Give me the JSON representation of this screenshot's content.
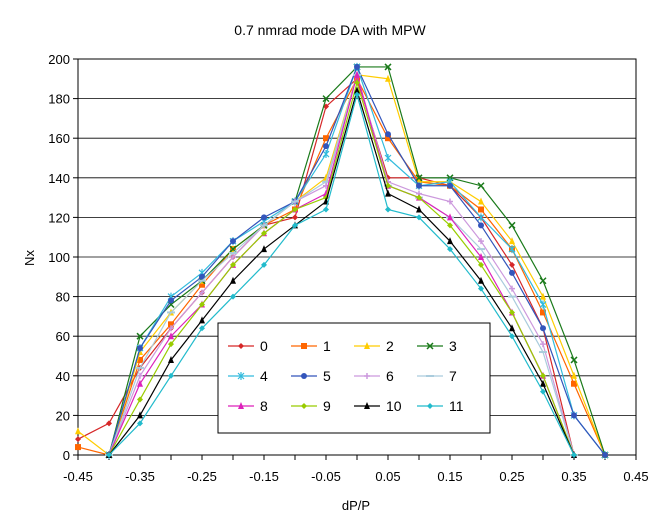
{
  "chart_data": {
    "type": "line",
    "title": "0.7 nmrad mode DA with MPW",
    "xlabel": "dP/P",
    "ylabel": "Nx",
    "xlim": [
      -0.45,
      0.45
    ],
    "ylim": [
      0,
      200
    ],
    "x_ticks": [
      "-0.45",
      "-0.35",
      "-0.25",
      "-0.15",
      "-0.05",
      "0.05",
      "0.15",
      "0.25",
      "0.35",
      "0.45"
    ],
    "y_ticks": [
      "0",
      "20",
      "40",
      "60",
      "80",
      "100",
      "120",
      "140",
      "160",
      "180",
      "200"
    ],
    "x": [
      -0.45,
      -0.4,
      -0.35,
      -0.3,
      -0.25,
      -0.2,
      -0.15,
      -0.1,
      -0.05,
      0.0,
      0.05,
      0.1,
      0.15,
      0.2,
      0.25,
      0.3,
      0.35,
      0.4,
      0.45
    ],
    "legend": {
      "placement": "lower-center",
      "columns": 4
    },
    "series": [
      {
        "name": "0",
        "color": "#d62728",
        "marker": "diamond",
        "values": [
          8,
          16,
          44,
          64,
          82,
          100,
          116,
          120,
          176,
          190,
          140,
          140,
          136,
          120,
          96,
          64,
          0,
          null,
          null
        ]
      },
      {
        "name": "1",
        "color": "#ff6600",
        "marker": "square",
        "values": [
          4,
          0,
          48,
          66,
          86,
          104,
          116,
          124,
          160,
          190,
          160,
          138,
          136,
          124,
          104,
          72,
          36,
          0,
          null
        ]
      },
      {
        "name": "2",
        "color": "#ffcc00",
        "marker": "triangle",
        "values": [
          12,
          0,
          52,
          72,
          88,
          104,
          116,
          128,
          140,
          192,
          190,
          138,
          138,
          128,
          108,
          80,
          40,
          0,
          null
        ]
      },
      {
        "name": "3",
        "color": "#1a7a1a",
        "marker": "x",
        "values": [
          null,
          0,
          60,
          76,
          88,
          104,
          116,
          128,
          180,
          196,
          196,
          140,
          140,
          136,
          116,
          88,
          48,
          0,
          null
        ]
      },
      {
        "name": "4",
        "color": "#33bbdd",
        "marker": "star",
        "values": [
          null,
          0,
          54,
          80,
          92,
          108,
          118,
          128,
          152,
          196,
          150,
          136,
          138,
          120,
          104,
          76,
          20,
          0,
          null
        ]
      },
      {
        "name": "5",
        "color": "#3355bb",
        "marker": "circle",
        "values": [
          null,
          0,
          54,
          78,
          90,
          108,
          120,
          128,
          156,
          196,
          162,
          136,
          136,
          116,
          92,
          64,
          20,
          0,
          null
        ]
      },
      {
        "name": "6",
        "color": "#cc99dd",
        "marker": "plus",
        "values": [
          null,
          0,
          40,
          64,
          82,
          100,
          116,
          128,
          136,
          192,
          138,
          132,
          128,
          108,
          84,
          56,
          0,
          null,
          null
        ]
      },
      {
        "name": "7",
        "color": "#aaccdd",
        "marker": "dash",
        "values": [
          null,
          0,
          44,
          72,
          88,
          102,
          116,
          128,
          138,
          192,
          136,
          130,
          120,
          104,
          80,
          52,
          0,
          null,
          null
        ]
      },
      {
        "name": "8",
        "color": "#dd22bb",
        "marker": "triangle",
        "values": [
          null,
          0,
          36,
          60,
          76,
          96,
          112,
          124,
          132,
          192,
          136,
          130,
          120,
          100,
          72,
          40,
          0,
          null,
          null
        ]
      },
      {
        "name": "9",
        "color": "#99cc00",
        "marker": "diamond",
        "values": [
          null,
          0,
          28,
          56,
          76,
          96,
          112,
          124,
          130,
          188,
          136,
          130,
          116,
          96,
          72,
          40,
          0,
          null,
          null
        ]
      },
      {
        "name": "10",
        "color": "#000000",
        "marker": "triangle",
        "values": [
          null,
          0,
          20,
          48,
          68,
          88,
          104,
          116,
          128,
          184,
          132,
          124,
          108,
          88,
          64,
          36,
          0,
          null,
          null
        ]
      },
      {
        "name": "11",
        "color": "#22bbcc",
        "marker": "diamond",
        "values": [
          null,
          0,
          16,
          40,
          64,
          80,
          96,
          116,
          124,
          182,
          124,
          120,
          104,
          84,
          60,
          32,
          0,
          null,
          null
        ]
      }
    ]
  }
}
